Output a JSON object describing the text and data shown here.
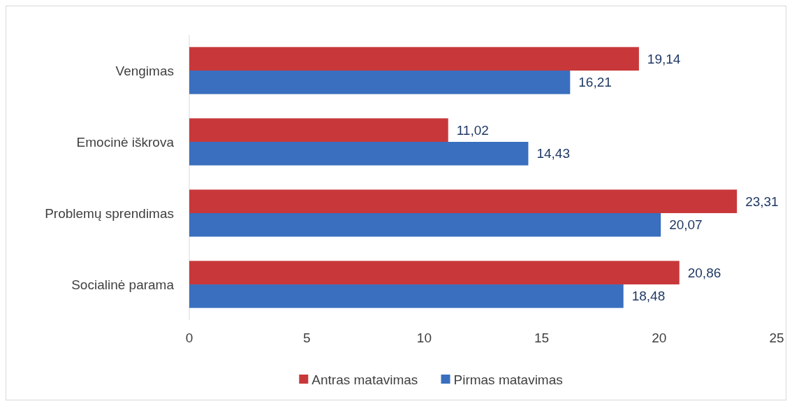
{
  "chart_data": {
    "type": "bar",
    "orientation": "horizontal",
    "categories": [
      "Vengimas",
      "Emocinė iškrova",
      "Problemų sprendimas",
      "Socialinė parama"
    ],
    "series": [
      {
        "name": "Antras matavimas",
        "color": "#c8383a",
        "values": [
          19.14,
          11.02,
          23.31,
          20.86
        ],
        "value_labels": [
          "19,14",
          "11,02",
          "23,31",
          "20,86"
        ]
      },
      {
        "name": "Pirmas matavimas",
        "color": "#3a6fbf",
        "values": [
          16.21,
          14.43,
          20.07,
          18.48
        ],
        "value_labels": [
          "16,21",
          "14,43",
          "20,07",
          "18,48"
        ]
      }
    ],
    "xlim": [
      0,
      25
    ],
    "xticks": [
      0,
      5,
      10,
      15,
      20,
      25
    ],
    "legend": "bottom",
    "grid": false
  }
}
